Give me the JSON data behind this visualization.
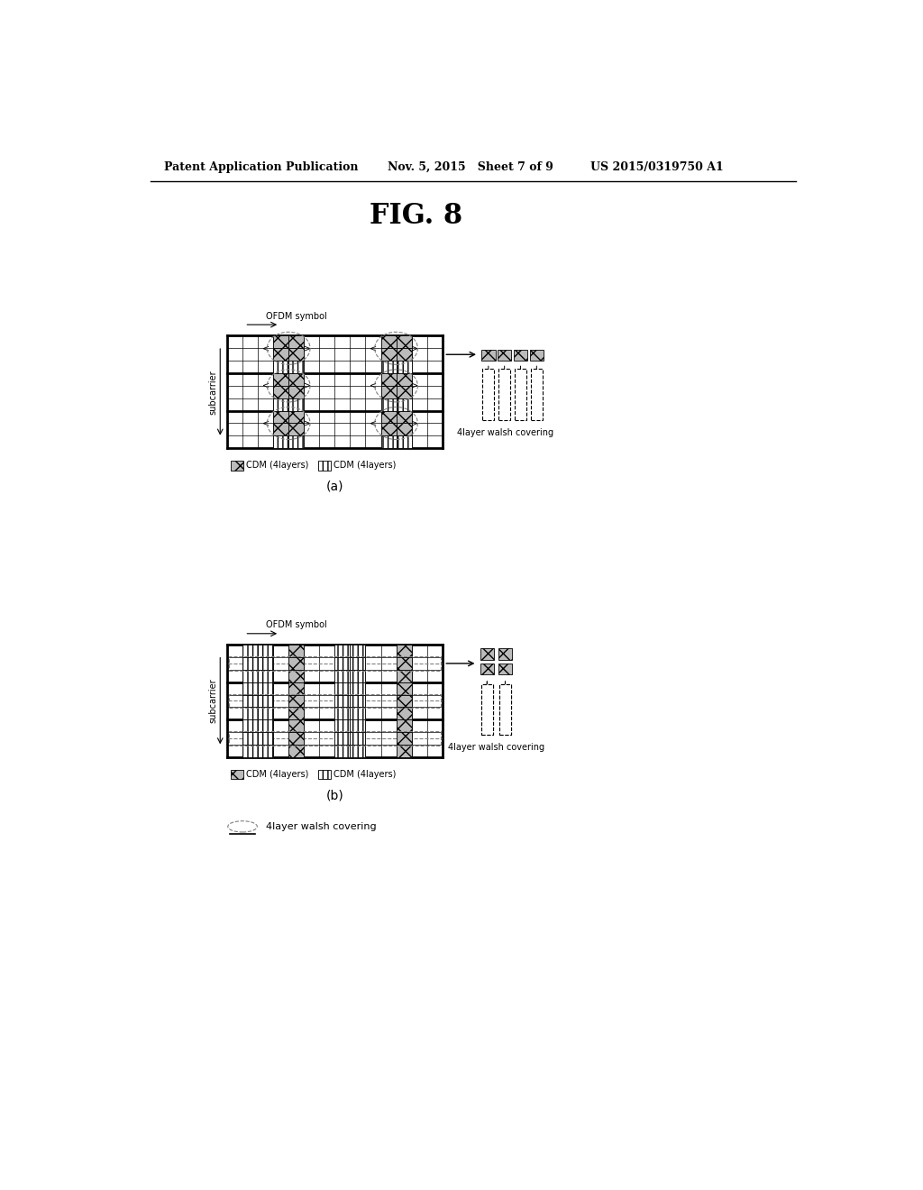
{
  "title": "FIG. 8",
  "header_left": "Patent Application Publication",
  "header_mid": "Nov. 5, 2015   Sheet 7 of 9",
  "header_right": "US 2015/0319750 A1",
  "background": "#ffffff",
  "label_a": "(a)",
  "label_b": "(b)",
  "legend_cdm1_text": "CDM (4layers)",
  "legend_cdm2_text": "CDM (4layers)",
  "walsh_text": "4layer walsh covering",
  "ofdm_label": "OFDM symbol",
  "subcarrier_label": "subcarrier",
  "bottom_legend_text": "4layer walsh covering"
}
